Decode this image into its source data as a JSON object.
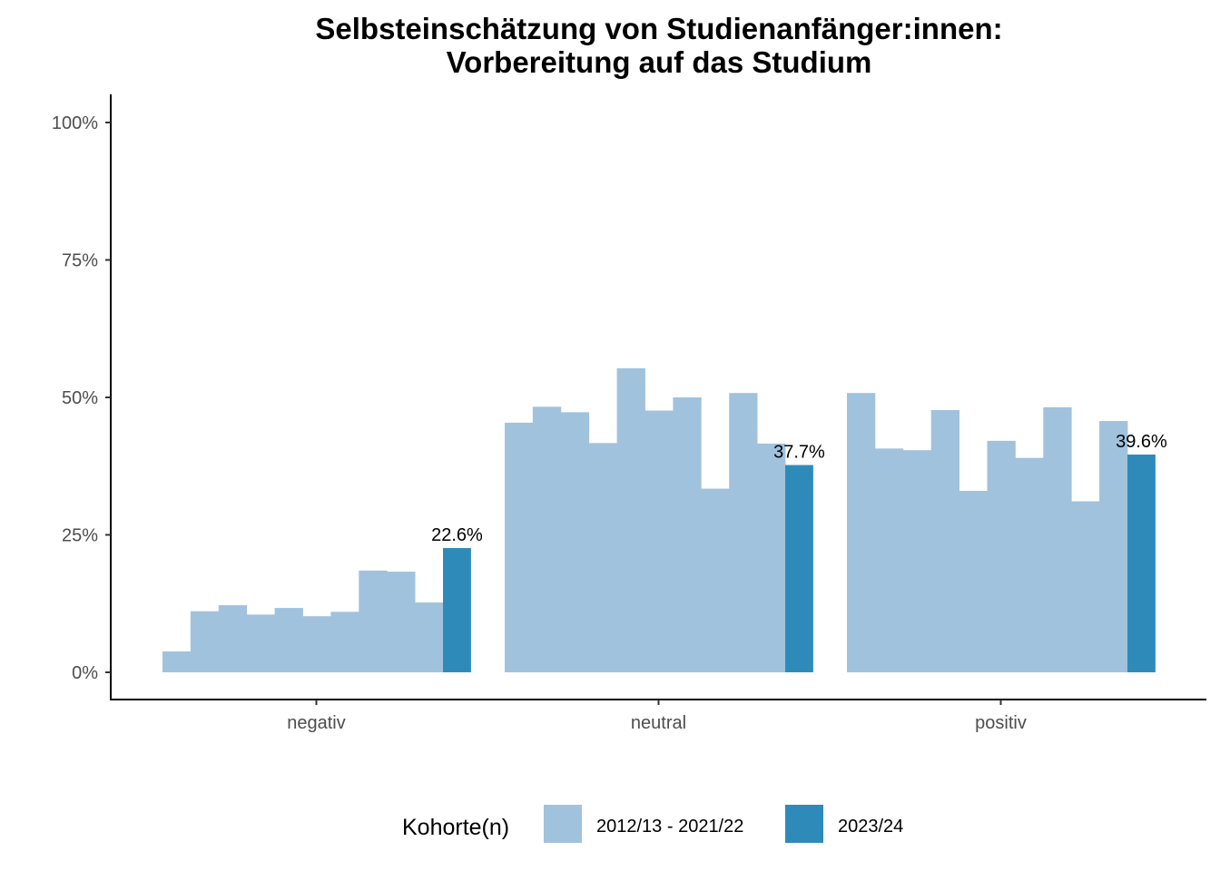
{
  "chart_data": {
    "type": "bar",
    "title": "Selbsteinschätzung von Studienanfänger:innen:",
    "subtitle": "Vorbereitung auf das Studium",
    "categories": [
      "negativ",
      "neutral",
      "positiv"
    ],
    "ylim": [
      0,
      100
    ],
    "yticks": [
      "0%",
      "25%",
      "50%",
      "75%",
      "100%"
    ],
    "ytick_values": [
      0,
      25,
      50,
      75,
      100
    ],
    "grid": false,
    "series": [
      {
        "name": "2012/13 - 2021/22",
        "color": "#A1C2DD",
        "values_by_category": [
          [
            3.8,
            11.1,
            12.2,
            10.5,
            11.7,
            10.2,
            11.0,
            18.5,
            18.3,
            12.7
          ],
          [
            45.4,
            48.3,
            47.3,
            41.7,
            55.3,
            47.6,
            50.0,
            33.4,
            50.8,
            41.6
          ],
          [
            50.8,
            40.7,
            40.4,
            47.7,
            33.0,
            42.1,
            39.0,
            48.2,
            31.1,
            45.7
          ]
        ]
      },
      {
        "name": "2023/24",
        "color": "#2E8BB9",
        "values": [
          22.6,
          37.7,
          39.6
        ]
      }
    ],
    "data_labels": [
      "22.6%",
      "37.7%",
      "39.6%"
    ],
    "legend": {
      "title": "Kohorte(n)",
      "position": "bottom",
      "entries": [
        "2012/13 - 2021/22",
        "2023/24"
      ]
    }
  }
}
